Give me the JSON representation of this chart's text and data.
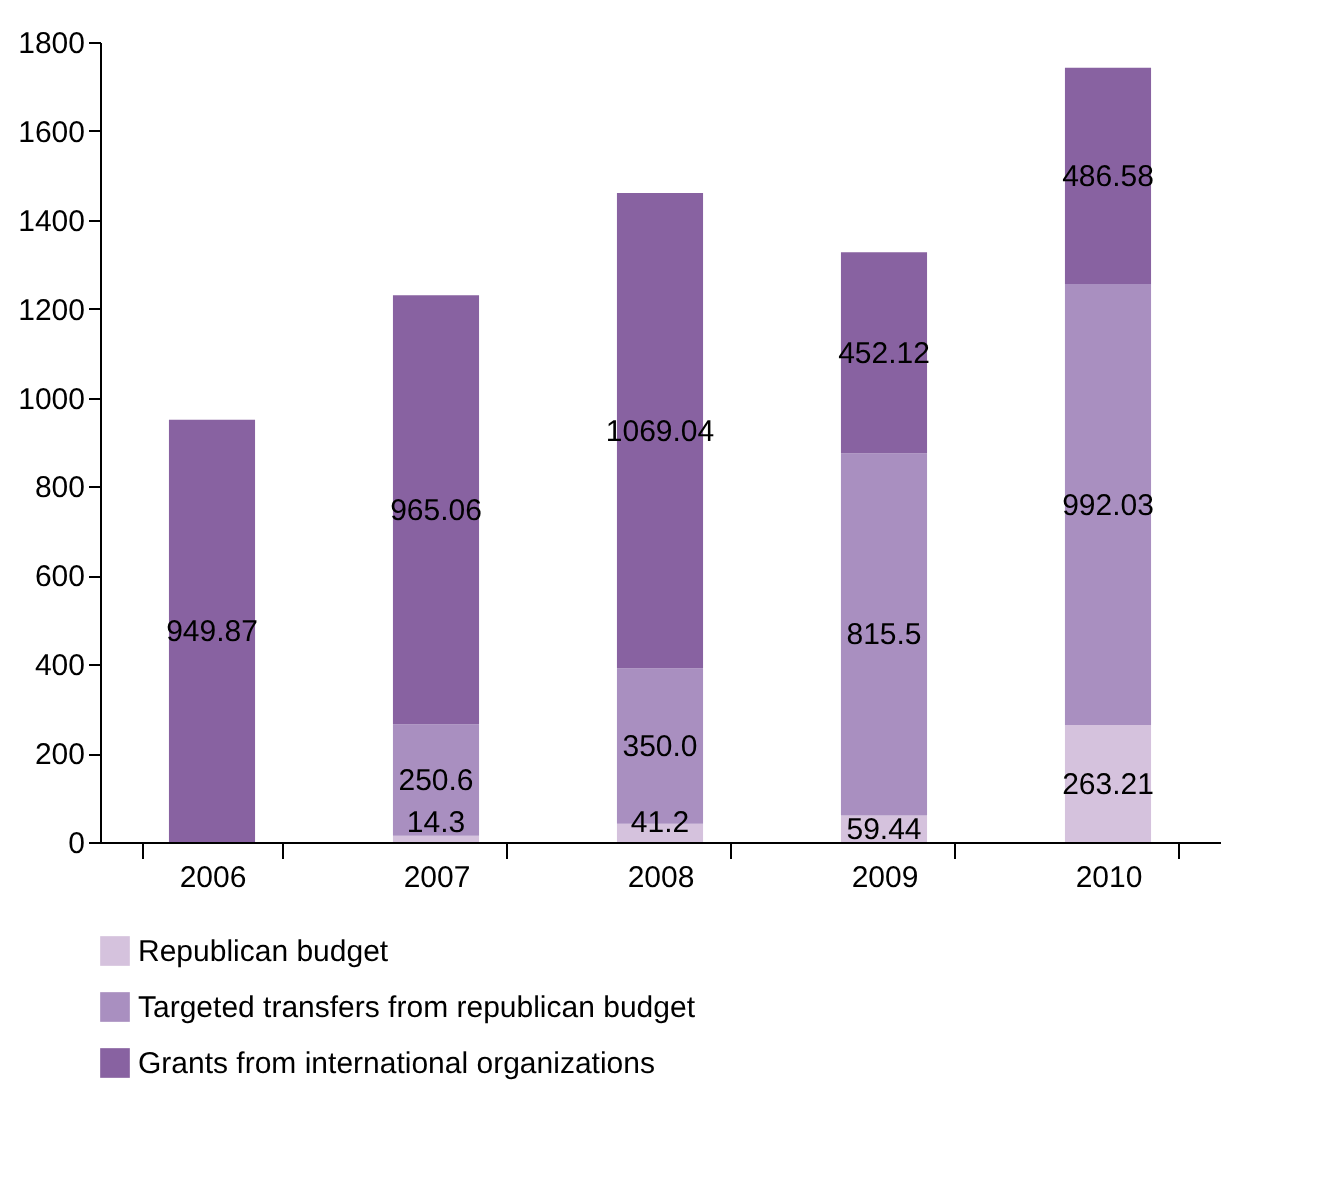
{
  "chart_data": {
    "type": "bar",
    "stacked": true,
    "categories": [
      "2006",
      "2007",
      "2008",
      "2009",
      "2010"
    ],
    "series": [
      {
        "name": "Republican budget",
        "color": "#d5c2dd",
        "values": [
          null,
          14.3,
          41.2,
          59.44,
          263.21
        ],
        "value_labels": [
          null,
          "14.3",
          "41.2",
          "59.44",
          "263.21"
        ]
      },
      {
        "name": "Targeted transfers from republican budget",
        "color": "#a98fc0",
        "values": [
          null,
          250.6,
          350.0,
          815.5,
          992.03
        ],
        "value_labels": [
          null,
          "250.6",
          "350.0",
          "815.5",
          "992.03"
        ]
      },
      {
        "name": "Grants from international organizations",
        "color": "#8862a1",
        "values": [
          949.87,
          965.06,
          1069.04,
          452.12,
          486.58
        ],
        "value_labels": [
          "949.87",
          "965.06",
          "1069.04",
          "452.12",
          "486.58"
        ]
      }
    ],
    "ylim": [
      0,
      1800
    ],
    "yticks": [
      0,
      200,
      400,
      600,
      800,
      1000,
      1200,
      1400,
      1600,
      1800
    ],
    "grid": false,
    "legend": "bottom"
  }
}
